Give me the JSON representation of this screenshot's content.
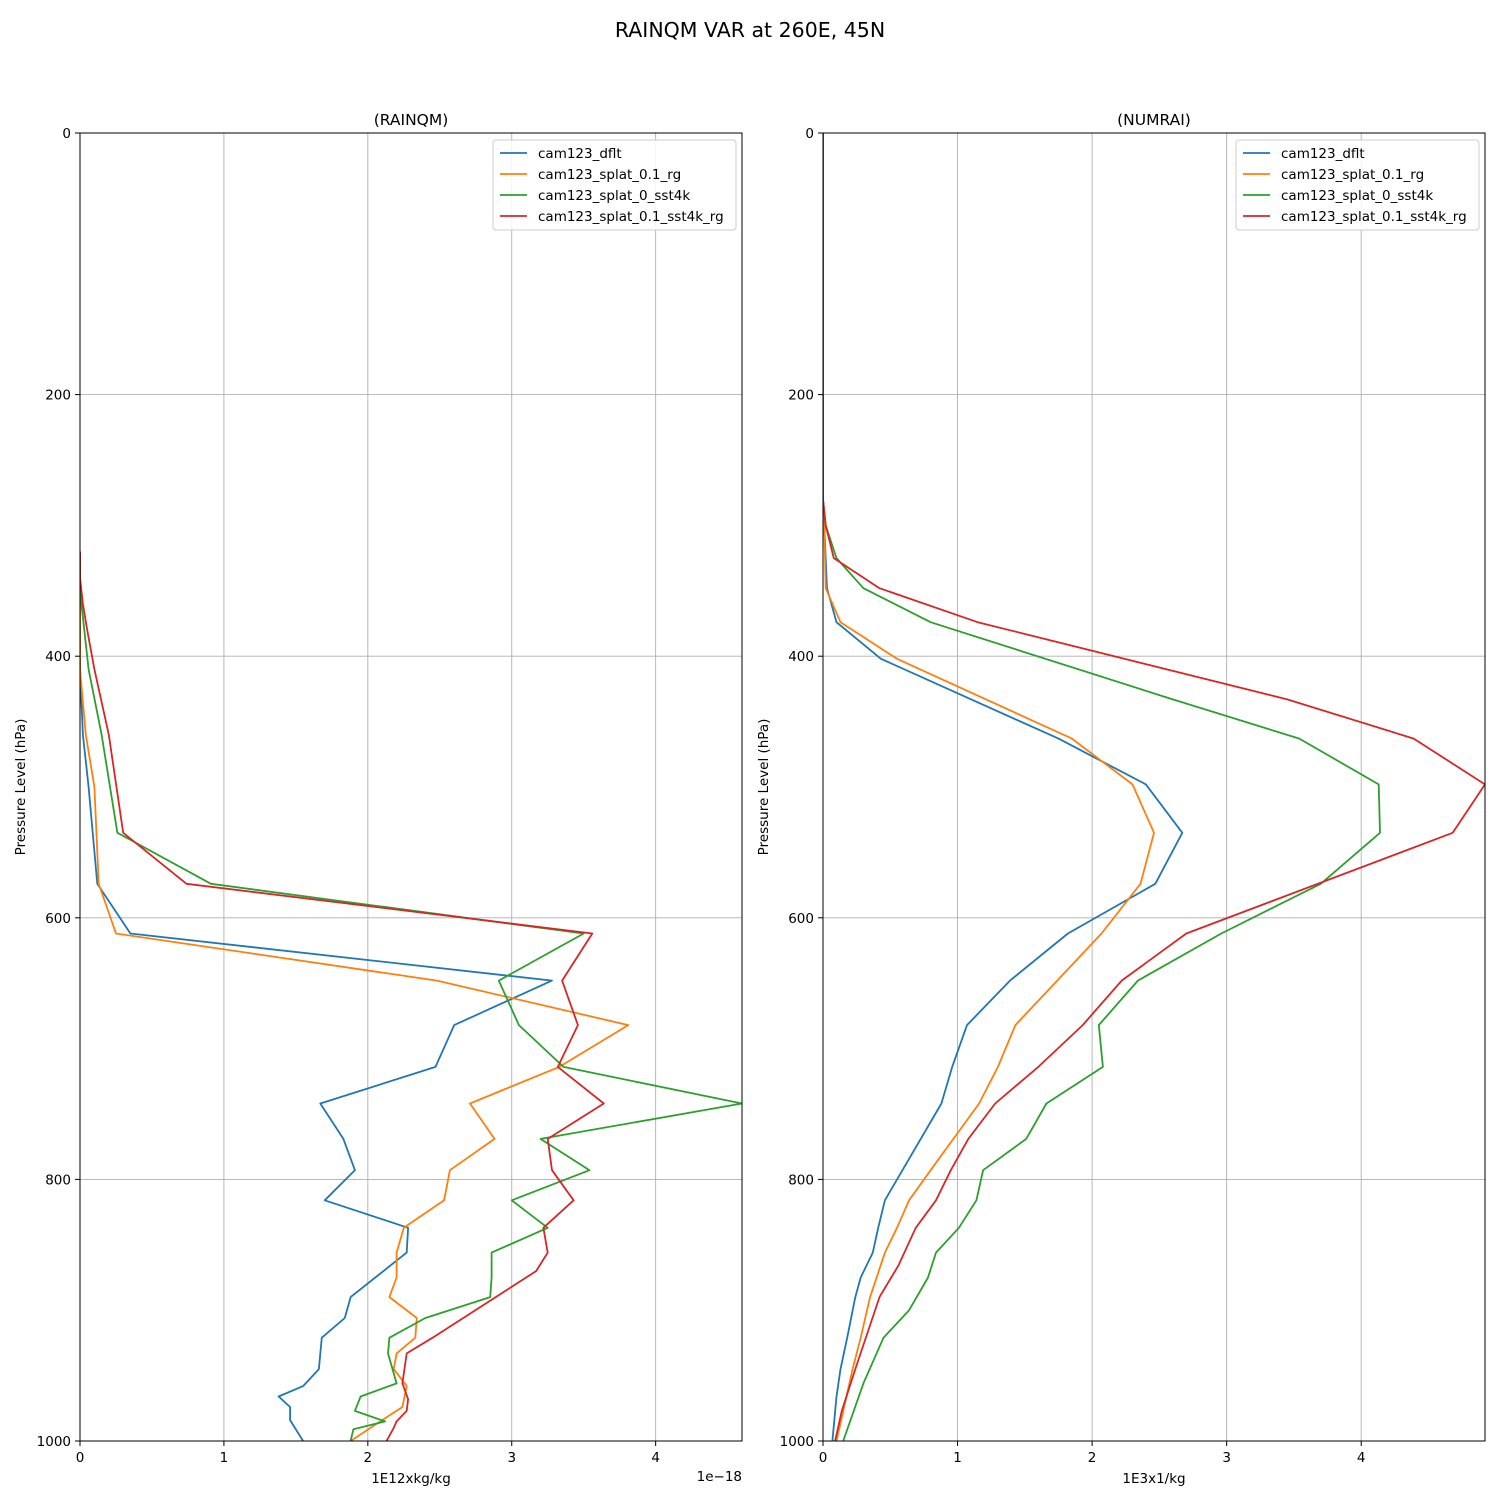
{
  "figure": {
    "suptitle": "RAINQM VAR at 260E, 45N"
  },
  "colors": {
    "cam123_dflt": "#1f77b4",
    "cam123_splat_0.1_rg": "#ff7f0e",
    "cam123_splat_0_sst4k": "#2ca02c",
    "cam123_splat_0.1_sst4k_rg": "#d62728"
  },
  "chart_data": [
    {
      "type": "line",
      "title": "(RAINQM)",
      "xlabel": "1E12xkg/kg",
      "ylabel": "Pressure Level (hPa)",
      "x_offset_label": "1e−18",
      "xlim": [
        0,
        4.6
      ],
      "ylim": [
        1000,
        0
      ],
      "xticks": [
        0,
        1,
        2,
        3,
        4
      ],
      "yticks": [
        0,
        200,
        400,
        600,
        800,
        1000
      ],
      "grid": true,
      "legend": "top-right",
      "series": [
        {
          "name": "cam123_dflt",
          "x": [
            0,
            0,
            0,
            0,
            0,
            0.02,
            0.06,
            0.12,
            0.35,
            3.28,
            2.6,
            2.47,
            1.67,
            1.83,
            1.91,
            1.7,
            2.28,
            2.27,
            1.88,
            1.84,
            1.68,
            1.67,
            1.66,
            1.55,
            1.38,
            1.46,
            1.46,
            1.55
          ],
          "y": [
            320,
            340,
            360,
            380,
            410,
            460,
            500,
            574,
            612,
            648,
            682,
            714,
            742,
            769,
            793,
            816,
            837,
            856,
            890,
            906,
            921,
            933,
            945,
            958,
            966,
            974,
            984,
            1000
          ]
        },
        {
          "name": "cam123_splat_0.1_rg",
          "x": [
            0,
            0,
            0,
            0,
            0,
            0.04,
            0.1,
            0.13,
            0.25,
            2.48,
            3.81,
            3.33,
            2.71,
            2.88,
            2.57,
            2.53,
            2.25,
            2.2,
            2.2,
            2.15,
            2.34,
            2.33,
            2.2,
            2.18,
            2.27,
            2.24,
            2.1,
            1.88
          ],
          "y": [
            320,
            340,
            360,
            380,
            410,
            460,
            500,
            574,
            612,
            648,
            682,
            714,
            742,
            769,
            793,
            816,
            837,
            856,
            875,
            890,
            906,
            921,
            933,
            945,
            958,
            974,
            984,
            1000
          ]
        },
        {
          "name": "cam123_splat_0_sst4k",
          "x": [
            0,
            0,
            0.01,
            0.03,
            0.06,
            0.15,
            0.26,
            0.91,
            3.5,
            2.91,
            3.05,
            3.36,
            4.6,
            3.2,
            3.54,
            3.0,
            3.25,
            2.86,
            2.86,
            2.85,
            2.4,
            2.15,
            2.14,
            2.2,
            1.95,
            1.91,
            2.12,
            1.9,
            1.88
          ],
          "y": [
            320,
            340,
            360,
            380,
            410,
            460,
            535,
            574,
            612,
            648,
            682,
            714,
            742,
            769,
            793,
            816,
            837,
            856,
            875,
            890,
            906,
            921,
            933,
            956,
            966,
            977,
            985,
            991,
            1000
          ]
        },
        {
          "name": "cam123_splat_0.1_sst4k_rg",
          "x": [
            0,
            0,
            0.02,
            0.05,
            0.1,
            0.2,
            0.3,
            0.74,
            3.56,
            3.35,
            3.46,
            3.32,
            3.64,
            3.25,
            3.28,
            3.43,
            3.22,
            3.25,
            3.17,
            2.45,
            2.27,
            2.24,
            2.28,
            2.27,
            2.2,
            2.18,
            2.13
          ],
          "y": [
            320,
            340,
            360,
            380,
            410,
            460,
            535,
            574,
            612,
            648,
            682,
            714,
            742,
            769,
            793,
            816,
            837,
            856,
            870,
            921,
            933,
            956,
            968,
            977,
            985,
            990,
            1000
          ]
        }
      ]
    },
    {
      "type": "line",
      "title": "(NUMRAI)",
      "xlabel": "1E3x1/kg",
      "ylabel": "Pressure Level (hPa)",
      "xlim": [
        0,
        4.92
      ],
      "ylim": [
        1000,
        0
      ],
      "xticks": [
        0,
        1,
        2,
        3,
        4
      ],
      "yticks": [
        0,
        200,
        400,
        600,
        800,
        1000
      ],
      "grid": true,
      "legend": "top-right",
      "series": [
        {
          "name": "cam123_dflt",
          "x": [
            0,
            0,
            0.01,
            0.03,
            0.1,
            0.43,
            1.75,
            2.4,
            2.67,
            2.47,
            1.82,
            1.39,
            1.07,
            0.96,
            0.88,
            0.46,
            0.41,
            0.37,
            0.28,
            0.24,
            0.18,
            0.13,
            0.1,
            0.07
          ],
          "y": [
            0,
            280,
            300,
            348,
            374,
            402,
            463,
            498,
            535,
            574,
            612,
            648,
            682,
            714,
            742,
            816,
            837,
            856,
            875,
            890,
            921,
            945,
            966,
            1000
          ]
        },
        {
          "name": "cam123_splat_0.1_rg",
          "x": [
            0,
            0,
            0.01,
            0.02,
            0.13,
            0.55,
            1.85,
            2.3,
            2.46,
            2.36,
            2.07,
            1.43,
            1.3,
            1.16,
            0.8,
            0.64,
            0.55,
            0.46,
            0.35,
            0.28,
            0.22,
            0.1
          ],
          "y": [
            0,
            280,
            300,
            348,
            374,
            402,
            463,
            498,
            535,
            574,
            612,
            682,
            714,
            742,
            793,
            816,
            837,
            856,
            890,
            921,
            945,
            1000
          ]
        },
        {
          "name": "cam123_splat_0_sst4k",
          "x": [
            0,
            0,
            0.02,
            0.1,
            0.3,
            0.8,
            2.6,
            3.54,
            4.13,
            4.14,
            3.7,
            2.96,
            2.34,
            2.05,
            2.08,
            1.66,
            1.51,
            1.19,
            1.14,
            1.01,
            0.84,
            0.78,
            0.64,
            0.45,
            0.3,
            0.15
          ],
          "y": [
            0,
            280,
            300,
            325,
            348,
            374,
            433,
            463,
            498,
            535,
            574,
            612,
            648,
            682,
            714,
            742,
            769,
            793,
            816,
            837,
            856,
            875,
            900,
            921,
            956,
            1000
          ]
        },
        {
          "name": "cam123_splat_0.1_sst4k_rg",
          "x": [
            0,
            0,
            0.02,
            0.08,
            0.42,
            1.15,
            3.45,
            4.39,
            4.92,
            4.68,
            2.7,
            2.22,
            1.93,
            1.6,
            1.28,
            1.08,
            0.95,
            0.84,
            0.69,
            0.56,
            0.42,
            0.24,
            0.14,
            0.09
          ],
          "y": [
            0,
            280,
            300,
            325,
            348,
            374,
            433,
            463,
            498,
            535,
            612,
            648,
            682,
            714,
            742,
            769,
            793,
            816,
            837,
            866,
            890,
            945,
            977,
            1000
          ]
        }
      ]
    }
  ]
}
